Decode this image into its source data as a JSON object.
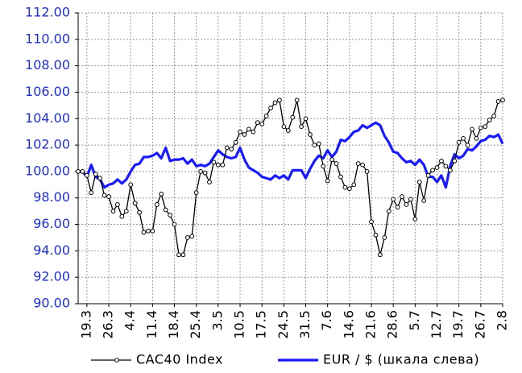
{
  "chart_data": {
    "type": "line",
    "categories": [
      null,
      null,
      "19.3",
      null,
      null,
      null,
      null,
      "26.3",
      null,
      null,
      null,
      null,
      "4.4",
      null,
      null,
      null,
      null,
      "11.4",
      null,
      null,
      null,
      null,
      "18.4",
      null,
      null,
      null,
      null,
      "25.4",
      null,
      null,
      null,
      null,
      "3.5",
      null,
      null,
      null,
      null,
      "10.5",
      null,
      null,
      null,
      null,
      "17.5",
      null,
      null,
      null,
      null,
      "24.5",
      null,
      null,
      null,
      null,
      "31.5",
      null,
      null,
      null,
      null,
      "7.6",
      null,
      null,
      null,
      null,
      "14.6",
      null,
      null,
      null,
      null,
      "21.6",
      null,
      null,
      null,
      null,
      "28.6",
      null,
      null,
      null,
      null,
      "5.7",
      null,
      null,
      null,
      null,
      "12.7",
      null,
      null,
      null,
      null,
      "19.7",
      null,
      null,
      null,
      null,
      "26.7",
      null,
      null,
      null,
      null,
      "2.8"
    ],
    "series": [
      {
        "name": "CAC40 Index",
        "color": "#000000",
        "marker": true,
        "values": [
          100.0,
          100.0,
          99.7,
          98.4,
          99.8,
          99.5,
          98.2,
          98.1,
          97.0,
          97.5,
          96.6,
          97.0,
          99.0,
          97.6,
          96.9,
          95.4,
          95.5,
          95.5,
          97.5,
          98.3,
          97.1,
          96.7,
          96.0,
          93.7,
          93.7,
          95.0,
          95.1,
          98.4,
          100.0,
          99.9,
          99.2,
          100.7,
          100.5,
          100.5,
          101.8,
          101.7,
          102.2,
          103.0,
          102.8,
          103.2,
          103.0,
          103.7,
          103.6,
          104.2,
          104.8,
          105.2,
          105.4,
          103.4,
          103.1,
          104.1,
          105.4,
          103.4,
          104.0,
          102.8,
          102.0,
          102.1,
          100.4,
          99.3,
          100.9,
          100.6,
          99.6,
          98.8,
          98.7,
          99.0,
          100.6,
          100.5,
          100.0,
          96.2,
          95.2,
          93.7,
          95.0,
          97.0,
          97.9,
          97.3,
          98.1,
          97.5,
          97.9,
          96.4,
          99.2,
          97.8,
          99.7,
          100.1,
          100.3,
          100.8,
          100.4,
          100.1,
          100.8,
          102.2,
          102.5,
          102.0,
          103.2,
          102.5,
          103.3,
          103.4,
          103.9,
          104.2,
          105.3,
          105.4
        ]
      },
      {
        "name": "EUR / $ (шкала слева)",
        "color": "#1a1aff",
        "marker": false,
        "values": [
          100.0,
          100.0,
          99.6,
          100.5,
          99.6,
          99.4,
          98.8,
          99.0,
          99.1,
          99.4,
          99.1,
          99.4,
          100.0,
          100.5,
          100.6,
          101.1,
          101.1,
          101.2,
          101.4,
          101.0,
          101.8,
          100.8,
          100.9,
          100.9,
          101.0,
          100.6,
          100.9,
          100.4,
          100.5,
          100.4,
          100.6,
          101.1,
          101.6,
          101.3,
          101.1,
          101.0,
          101.1,
          101.8,
          100.9,
          100.3,
          100.1,
          99.9,
          99.6,
          99.5,
          99.4,
          99.7,
          99.5,
          99.7,
          99.4,
          100.1,
          100.1,
          100.1,
          99.5,
          100.2,
          100.8,
          101.2,
          101.0,
          101.6,
          101.1,
          101.5,
          102.4,
          102.3,
          102.6,
          103.0,
          103.1,
          103.5,
          103.3,
          103.5,
          103.7,
          103.5,
          102.7,
          102.2,
          101.5,
          101.4,
          101.0,
          100.7,
          100.8,
          100.5,
          100.9,
          100.5,
          99.6,
          99.6,
          99.2,
          99.7,
          98.8,
          100.4,
          101.3,
          101.0,
          101.2,
          101.7,
          101.6,
          101.9,
          102.3,
          102.4,
          102.7,
          102.6,
          102.8,
          102.1
        ]
      }
    ],
    "ylim": [
      90,
      112
    ],
    "yticks": [
      {
        "value": 90,
        "label": "90.00"
      },
      {
        "value": 92,
        "label": "92.00"
      },
      {
        "value": 94,
        "label": "94.00"
      },
      {
        "value": 96,
        "label": "96.00"
      },
      {
        "value": 98,
        "label": "98.00"
      },
      {
        "value": 100,
        "label": "100.00"
      },
      {
        "value": 102,
        "label": "102.00"
      },
      {
        "value": 104,
        "label": "104.00"
      },
      {
        "value": 106,
        "label": "106.00"
      },
      {
        "value": 108,
        "label": "108.00"
      },
      {
        "value": 110,
        "label": "110.00"
      },
      {
        "value": 112,
        "label": "112.00"
      }
    ],
    "grid": true,
    "legend": "bottom"
  }
}
